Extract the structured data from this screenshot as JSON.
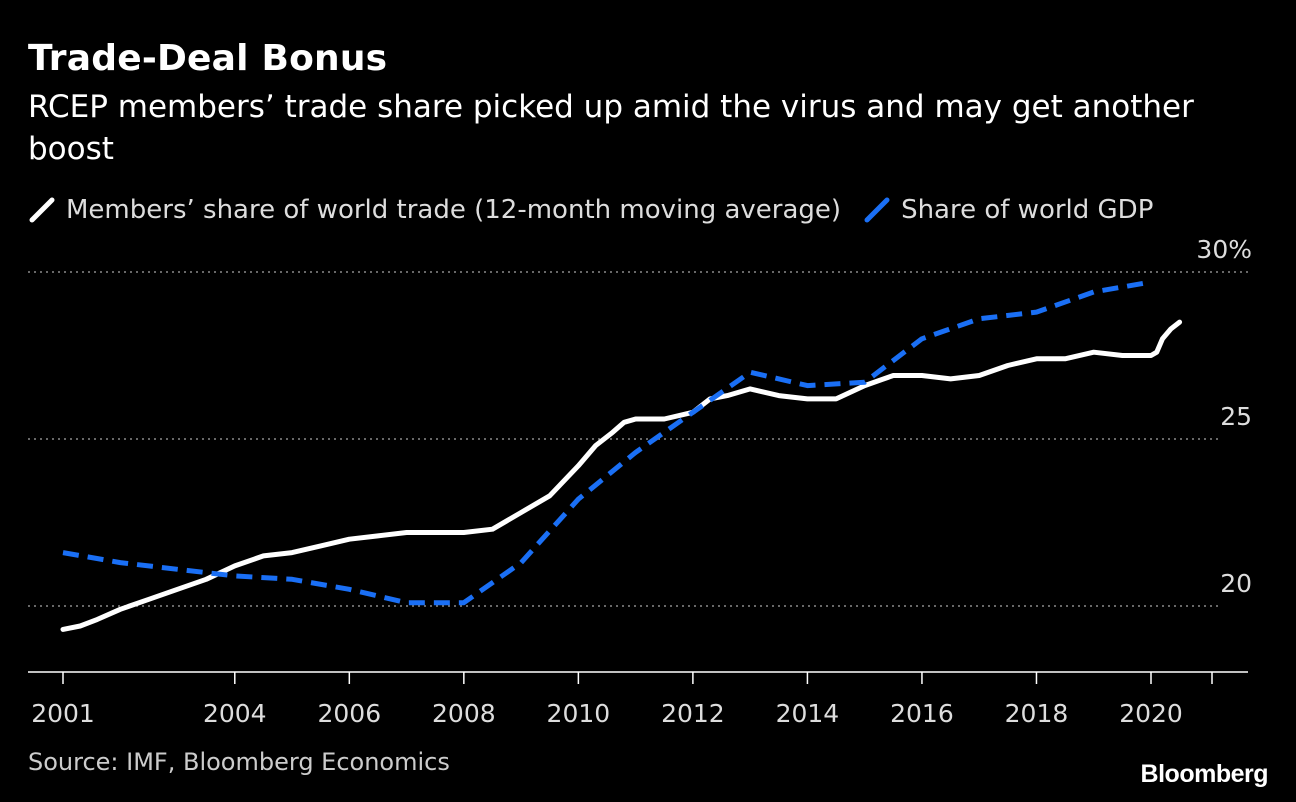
{
  "title": "Trade-Deal Bonus",
  "subtitle": "RCEP members’ trade share picked up amid the virus and may get another boost",
  "source": "Source: IMF, Bloomberg Economics",
  "brand": "Bloomberg",
  "colors": {
    "background": "#000000",
    "trade": "#ffffff",
    "gdp": "#1a6ff5",
    "grid": "#8a8a8a"
  },
  "chart_data": {
    "type": "line",
    "title": "Trade-Deal Bonus",
    "xlabel": "",
    "ylabel": "",
    "xlim": [
      2000.5,
      2021.5
    ],
    "ylim": [
      18,
      30
    ],
    "x_ticks": [
      2001,
      2004,
      2006,
      2008,
      2010,
      2012,
      2014,
      2016,
      2018,
      2020
    ],
    "x_tick_labels": [
      "2001",
      "2004",
      "2006",
      "2008",
      "2010",
      "2012",
      "2014",
      "2016",
      "2018",
      "2020"
    ],
    "y_ticks": [
      20,
      25,
      30
    ],
    "y_tick_labels": [
      "20",
      "25",
      "30%"
    ],
    "grid": "horizontal dotted",
    "legend_position": "top-left",
    "series": [
      {
        "name": "Members’ share of world trade (12-month moving average)",
        "style": "solid",
        "color": "#ffffff",
        "x": [
          2001,
          2001.3,
          2001.6,
          2002,
          2002.5,
          2003,
          2003.5,
          2004,
          2004.5,
          2005,
          2005.5,
          2006,
          2006.5,
          2007,
          2007.5,
          2008,
          2008.5,
          2009,
          2009.5,
          2010,
          2010.3,
          2010.6,
          2010.8,
          2011,
          2011.5,
          2012,
          2012.3,
          2012.6,
          2013,
          2013.5,
          2014,
          2014.5,
          2015,
          2015.5,
          2016,
          2016.5,
          2017,
          2017.5,
          2018,
          2018.5,
          2019,
          2019.5,
          2020,
          2020.1,
          2020.2,
          2020.35,
          2020.5
        ],
        "y": [
          19.3,
          19.4,
          19.6,
          19.9,
          20.2,
          20.5,
          20.8,
          21.2,
          21.5,
          21.6,
          21.8,
          22.0,
          22.1,
          22.2,
          22.2,
          22.2,
          22.3,
          22.8,
          23.3,
          24.2,
          24.8,
          25.2,
          25.5,
          25.6,
          25.6,
          25.8,
          26.2,
          26.3,
          26.5,
          26.3,
          26.2,
          26.2,
          26.6,
          26.9,
          26.9,
          26.8,
          26.9,
          27.2,
          27.4,
          27.4,
          27.6,
          27.5,
          27.5,
          27.6,
          28.0,
          28.3,
          28.5
        ]
      },
      {
        "name": "Share of world GDP",
        "style": "dashed",
        "color": "#1a6ff5",
        "x": [
          2001,
          2002,
          2003,
          2004,
          2005,
          2006,
          2007,
          2008,
          2009,
          2010,
          2011,
          2012,
          2013,
          2014,
          2015,
          2016,
          2017,
          2018,
          2019,
          2020
        ],
        "y": [
          21.6,
          21.3,
          21.1,
          20.9,
          20.8,
          20.5,
          20.1,
          20.1,
          21.3,
          23.2,
          24.6,
          25.8,
          27.0,
          26.6,
          26.7,
          28.0,
          28.6,
          28.8,
          29.4,
          29.7
        ]
      }
    ]
  }
}
